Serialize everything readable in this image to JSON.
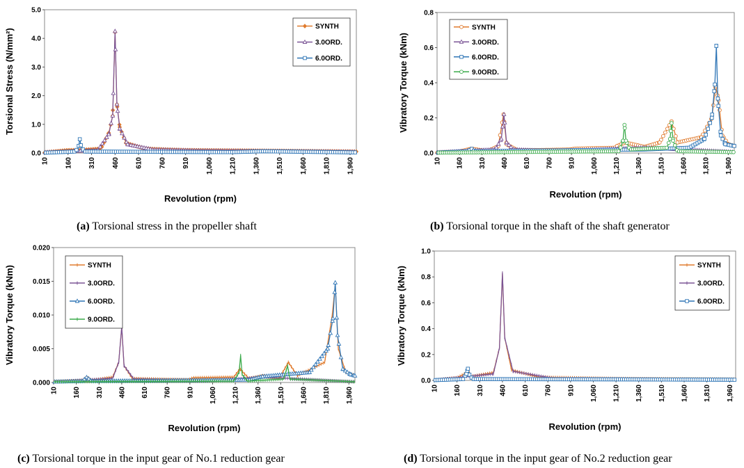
{
  "figure": {
    "colors": {
      "SYNTH": "#E07B2E",
      "3.0ORD.": "#7B5596",
      "6.0ORD.": "#2E75B6",
      "9.0ORD.": "#3AAA4A"
    }
  },
  "chart_data": [
    {
      "type": "line",
      "caption_label": "(a)",
      "caption_text": " Torsional stress in the propeller shaft",
      "xlabel": "Revolution (rpm)",
      "ylabel": "Torsional Stress (N/mm²)",
      "xlim": [
        10,
        2000
      ],
      "ylim": [
        0,
        5.0
      ],
      "x_ticks": [
        "10",
        "160",
        "310",
        "460",
        "610",
        "760",
        "910",
        "1,060",
        "1,210",
        "1,360",
        "1,510",
        "1,660",
        "1,810",
        "1,960"
      ],
      "y_ticks": [
        "0.0",
        "1.0",
        "2.0",
        "3.0",
        "4.0",
        "5.0"
      ],
      "legend": "top-right",
      "series": [
        {
          "name": "SYNTH",
          "color": "#E07B2E",
          "marker": "diamond",
          "baseline": 0.05,
          "values": [
            {
              "x": 10,
              "y": 0.02
            },
            {
              "x": 160,
              "y": 0.1
            },
            {
              "x": 230,
              "y": 0.1
            },
            {
              "x": 370,
              "y": 0.15
            },
            {
              "x": 420,
              "y": 0.7
            },
            {
              "x": 445,
              "y": 1.3
            },
            {
              "x": 460,
              "y": 4.22
            },
            {
              "x": 472,
              "y": 1.7
            },
            {
              "x": 490,
              "y": 0.9
            },
            {
              "x": 530,
              "y": 0.35
            },
            {
              "x": 650,
              "y": 0.15
            },
            {
              "x": 900,
              "y": 0.1
            },
            {
              "x": 1400,
              "y": 0.08
            },
            {
              "x": 2000,
              "y": 0.05
            }
          ]
        },
        {
          "name": "3.0ORD.",
          "color": "#7B5596",
          "marker": "triangle",
          "baseline": 0.02,
          "values": [
            {
              "x": 10,
              "y": 0.02
            },
            {
              "x": 350,
              "y": 0.1
            },
            {
              "x": 420,
              "y": 0.65
            },
            {
              "x": 445,
              "y": 1.3
            },
            {
              "x": 460,
              "y": 4.25
            },
            {
              "x": 472,
              "y": 1.7
            },
            {
              "x": 490,
              "y": 0.85
            },
            {
              "x": 540,
              "y": 0.3
            },
            {
              "x": 700,
              "y": 0.12
            },
            {
              "x": 1000,
              "y": 0.08
            },
            {
              "x": 2000,
              "y": 0.04
            }
          ]
        },
        {
          "name": "6.0ORD.",
          "color": "#2E75B6",
          "marker": "square",
          "baseline": 0.01,
          "values": [
            {
              "x": 10,
              "y": 0.01
            },
            {
              "x": 200,
              "y": 0.05
            },
            {
              "x": 225,
              "y": 0.15
            },
            {
              "x": 235,
              "y": 0.48
            },
            {
              "x": 245,
              "y": 0.18
            },
            {
              "x": 270,
              "y": 0.05
            },
            {
              "x": 1200,
              "y": 0.03
            },
            {
              "x": 1410,
              "y": 0.06
            },
            {
              "x": 2000,
              "y": 0.02
            }
          ]
        }
      ]
    },
    {
      "type": "line",
      "caption_label": "(b)",
      "caption_text": " Torsional torque in the shaft of the shaft generator",
      "xlabel": "Revolution (rpm)",
      "ylabel": "Vibratory Torque (kNm)",
      "xlim": [
        10,
        2000
      ],
      "ylim": [
        0,
        0.8
      ],
      "x_ticks": [
        "10",
        "160",
        "310",
        "460",
        "610",
        "760",
        "910",
        "1,060",
        "1,210",
        "1,360",
        "1,510",
        "1,660",
        "1,810",
        "1,960"
      ],
      "y_ticks": [
        "0.0",
        "0.2",
        "0.4",
        "0.6",
        "0.8"
      ],
      "legend": "top-right",
      "series": [
        {
          "name": "SYNTH",
          "color": "#E07B2E",
          "marker": "circle",
          "baseline": 0.005,
          "values": [
            {
              "x": 10,
              "y": 0.003
            },
            {
              "x": 160,
              "y": 0.008
            },
            {
              "x": 240,
              "y": 0.025
            },
            {
              "x": 350,
              "y": 0.01
            },
            {
              "x": 420,
              "y": 0.04
            },
            {
              "x": 455,
              "y": 0.22
            },
            {
              "x": 475,
              "y": 0.05
            },
            {
              "x": 550,
              "y": 0.015
            },
            {
              "x": 900,
              "y": 0.02
            },
            {
              "x": 935,
              "y": 0.025
            },
            {
              "x": 1200,
              "y": 0.03
            },
            {
              "x": 1215,
              "y": 0.04
            },
            {
              "x": 1270,
              "y": 0.06
            },
            {
              "x": 1400,
              "y": 0.035
            },
            {
              "x": 1500,
              "y": 0.06
            },
            {
              "x": 1580,
              "y": 0.18
            },
            {
              "x": 1620,
              "y": 0.06
            },
            {
              "x": 1780,
              "y": 0.09
            },
            {
              "x": 1850,
              "y": 0.2
            },
            {
              "x": 1875,
              "y": 0.38
            },
            {
              "x": 1895,
              "y": 0.3
            },
            {
              "x": 1920,
              "y": 0.1
            },
            {
              "x": 1960,
              "y": 0.05
            },
            {
              "x": 2000,
              "y": 0.04
            }
          ]
        },
        {
          "name": "3.0ORD.",
          "color": "#7B5596",
          "marker": "triangle",
          "baseline": 0.005,
          "values": [
            {
              "x": 10,
              "y": 0.003
            },
            {
              "x": 400,
              "y": 0.02
            },
            {
              "x": 440,
              "y": 0.08
            },
            {
              "x": 458,
              "y": 0.22
            },
            {
              "x": 475,
              "y": 0.06
            },
            {
              "x": 520,
              "y": 0.02
            },
            {
              "x": 800,
              "y": 0.01
            },
            {
              "x": 1400,
              "y": 0.03
            },
            {
              "x": 2000,
              "y": 0.005
            }
          ]
        },
        {
          "name": "6.0ORD.",
          "color": "#2E75B6",
          "marker": "square",
          "baseline": 0.002,
          "values": [
            {
              "x": 10,
              "y": 0.002
            },
            {
              "x": 220,
              "y": 0.01
            },
            {
              "x": 240,
              "y": 0.025
            },
            {
              "x": 260,
              "y": 0.01
            },
            {
              "x": 1400,
              "y": 0.02
            },
            {
              "x": 1700,
              "y": 0.03
            },
            {
              "x": 1800,
              "y": 0.08
            },
            {
              "x": 1850,
              "y": 0.2
            },
            {
              "x": 1870,
              "y": 0.39
            },
            {
              "x": 1880,
              "y": 0.61
            },
            {
              "x": 1890,
              "y": 0.31
            },
            {
              "x": 1910,
              "y": 0.1
            },
            {
              "x": 1940,
              "y": 0.05
            },
            {
              "x": 2000,
              "y": 0.04
            }
          ]
        },
        {
          "name": "9.0ORD.",
          "color": "#3AAA4A",
          "marker": "circle",
          "baseline": 0.002,
          "values": [
            {
              "x": 10,
              "y": 0.002
            },
            {
              "x": 1230,
              "y": 0.01
            },
            {
              "x": 1255,
              "y": 0.07
            },
            {
              "x": 1265,
              "y": 0.16
            },
            {
              "x": 1275,
              "y": 0.07
            },
            {
              "x": 1300,
              "y": 0.02
            },
            {
              "x": 1550,
              "y": 0.03
            },
            {
              "x": 1570,
              "y": 0.08
            },
            {
              "x": 1580,
              "y": 0.17
            },
            {
              "x": 1590,
              "y": 0.07
            },
            {
              "x": 1620,
              "y": 0.01
            },
            {
              "x": 2000,
              "y": 0.005
            }
          ]
        }
      ]
    },
    {
      "type": "line",
      "caption_label": "(c)",
      "caption_text": " Torsional torque in the input gear of No.1 reduction gear",
      "xlabel": "Revolution (rpm)",
      "ylabel": "Vibratory Torque (kNm)",
      "xlim": [
        10,
        2000
      ],
      "ylim": [
        0,
        0.02
      ],
      "x_ticks": [
        "10",
        "160",
        "310",
        "460",
        "610",
        "760",
        "910",
        "1,060",
        "1,210",
        "1,360",
        "1,510",
        "1,660",
        "1,810",
        "1,960"
      ],
      "y_ticks": [
        "0.000",
        "0.005",
        "0.010",
        "0.015",
        "0.020"
      ],
      "legend": "top-left",
      "series": [
        {
          "name": "SYNTH",
          "color": "#E07B2E",
          "marker": "dash",
          "baseline": 0.0001,
          "values": [
            {
              "x": 10,
              "y": 0.0001
            },
            {
              "x": 200,
              "y": 0.0003
            },
            {
              "x": 230,
              "y": 0.0008
            },
            {
              "x": 260,
              "y": 0.0003
            },
            {
              "x": 400,
              "y": 0.0008
            },
            {
              "x": 440,
              "y": 0.003
            },
            {
              "x": 460,
              "y": 0.0082
            },
            {
              "x": 475,
              "y": 0.0025
            },
            {
              "x": 530,
              "y": 0.0006
            },
            {
              "x": 900,
              "y": 0.0004
            },
            {
              "x": 930,
              "y": 0.0007
            },
            {
              "x": 1200,
              "y": 0.0008
            },
            {
              "x": 1240,
              "y": 0.002
            },
            {
              "x": 1300,
              "y": 0.0006
            },
            {
              "x": 1390,
              "y": 0.001
            },
            {
              "x": 1500,
              "y": 0.0006
            },
            {
              "x": 1560,
              "y": 0.003
            },
            {
              "x": 1620,
              "y": 0.001
            },
            {
              "x": 1800,
              "y": 0.003
            },
            {
              "x": 1850,
              "y": 0.01
            },
            {
              "x": 1870,
              "y": 0.0145
            },
            {
              "x": 1890,
              "y": 0.005
            },
            {
              "x": 1940,
              "y": 0.0015
            },
            {
              "x": 2000,
              "y": 0.001
            }
          ]
        },
        {
          "name": "3.0ORD.",
          "color": "#7B5596",
          "marker": "dash",
          "baseline": 0.0001,
          "values": [
            {
              "x": 10,
              "y": 0.0001
            },
            {
              "x": 400,
              "y": 0.0006
            },
            {
              "x": 440,
              "y": 0.003
            },
            {
              "x": 460,
              "y": 0.0083
            },
            {
              "x": 475,
              "y": 0.0025
            },
            {
              "x": 540,
              "y": 0.0005
            },
            {
              "x": 1000,
              "y": 0.0002
            },
            {
              "x": 1390,
              "y": 0.0008
            },
            {
              "x": 2000,
              "y": 0.0001
            }
          ]
        },
        {
          "name": "6.0ORD.",
          "color": "#2E75B6",
          "marker": "triangle",
          "baseline": 0.0001,
          "values": [
            {
              "x": 10,
              "y": 0.0001
            },
            {
              "x": 200,
              "y": 0.0002
            },
            {
              "x": 230,
              "y": 0.0008
            },
            {
              "x": 260,
              "y": 0.0002
            },
            {
              "x": 1300,
              "y": 0.0004
            },
            {
              "x": 1390,
              "y": 0.0009
            },
            {
              "x": 1700,
              "y": 0.0015
            },
            {
              "x": 1820,
              "y": 0.005
            },
            {
              "x": 1855,
              "y": 0.0095
            },
            {
              "x": 1870,
              "y": 0.0148
            },
            {
              "x": 1885,
              "y": 0.007
            },
            {
              "x": 1920,
              "y": 0.002
            },
            {
              "x": 1970,
              "y": 0.0012
            },
            {
              "x": 2000,
              "y": 0.001
            }
          ]
        },
        {
          "name": "9.0ORD.",
          "color": "#3AAA4A",
          "marker": "dash",
          "baseline": 0.0001,
          "values": [
            {
              "x": 10,
              "y": 0.0001
            },
            {
              "x": 1200,
              "y": 0.0002
            },
            {
              "x": 1235,
              "y": 0.0015
            },
            {
              "x": 1245,
              "y": 0.004
            },
            {
              "x": 1255,
              "y": 0.0012
            },
            {
              "x": 1290,
              "y": 0.0002
            },
            {
              "x": 1530,
              "y": 0.0005
            },
            {
              "x": 1555,
              "y": 0.0025
            },
            {
              "x": 1570,
              "y": 0.0005
            },
            {
              "x": 2000,
              "y": 0.0001
            }
          ]
        }
      ]
    },
    {
      "type": "line",
      "caption_label": "(d)",
      "caption_text": " Torsional torque in the input gear of No.2 reduction gear",
      "xlabel": "Revolution (rpm)",
      "ylabel": "Vibratory Torque (kNm)",
      "xlim": [
        10,
        2000
      ],
      "ylim": [
        0,
        1.0
      ],
      "x_ticks": [
        "10",
        "160",
        "310",
        "460",
        "610",
        "760",
        "910",
        "1,060",
        "1,210",
        "1,360",
        "1,510",
        "1,660",
        "1,810",
        "1,960"
      ],
      "y_ticks": [
        "0.0",
        "0.2",
        "0.4",
        "0.6",
        "0.8",
        "1.0"
      ],
      "legend": "top-right",
      "series": [
        {
          "name": "SYNTH",
          "color": "#E07B2E",
          "marker": "dash",
          "baseline": 0.005,
          "values": [
            {
              "x": 10,
              "y": 0.003
            },
            {
              "x": 160,
              "y": 0.02
            },
            {
              "x": 225,
              "y": 0.06
            },
            {
              "x": 235,
              "y": 0.09
            },
            {
              "x": 250,
              "y": 0.03
            },
            {
              "x": 400,
              "y": 0.06
            },
            {
              "x": 440,
              "y": 0.25
            },
            {
              "x": 460,
              "y": 0.82
            },
            {
              "x": 475,
              "y": 0.33
            },
            {
              "x": 520,
              "y": 0.08
            },
            {
              "x": 700,
              "y": 0.025
            },
            {
              "x": 1200,
              "y": 0.015
            },
            {
              "x": 2000,
              "y": 0.01
            }
          ]
        },
        {
          "name": "3.0ORD.",
          "color": "#7B5596",
          "marker": "dash",
          "baseline": 0.005,
          "values": [
            {
              "x": 10,
              "y": 0.003
            },
            {
              "x": 400,
              "y": 0.05
            },
            {
              "x": 440,
              "y": 0.25
            },
            {
              "x": 460,
              "y": 0.83
            },
            {
              "x": 475,
              "y": 0.33
            },
            {
              "x": 530,
              "y": 0.07
            },
            {
              "x": 800,
              "y": 0.015
            },
            {
              "x": 2000,
              "y": 0.005
            }
          ]
        },
        {
          "name": "6.0ORD.",
          "color": "#2E75B6",
          "marker": "square",
          "baseline": 0.003,
          "values": [
            {
              "x": 10,
              "y": 0.002
            },
            {
              "x": 200,
              "y": 0.01
            },
            {
              "x": 222,
              "y": 0.05
            },
            {
              "x": 232,
              "y": 0.09
            },
            {
              "x": 245,
              "y": 0.03
            },
            {
              "x": 270,
              "y": 0.01
            },
            {
              "x": 1200,
              "y": 0.008
            },
            {
              "x": 2000,
              "y": 0.005
            }
          ]
        }
      ]
    }
  ]
}
